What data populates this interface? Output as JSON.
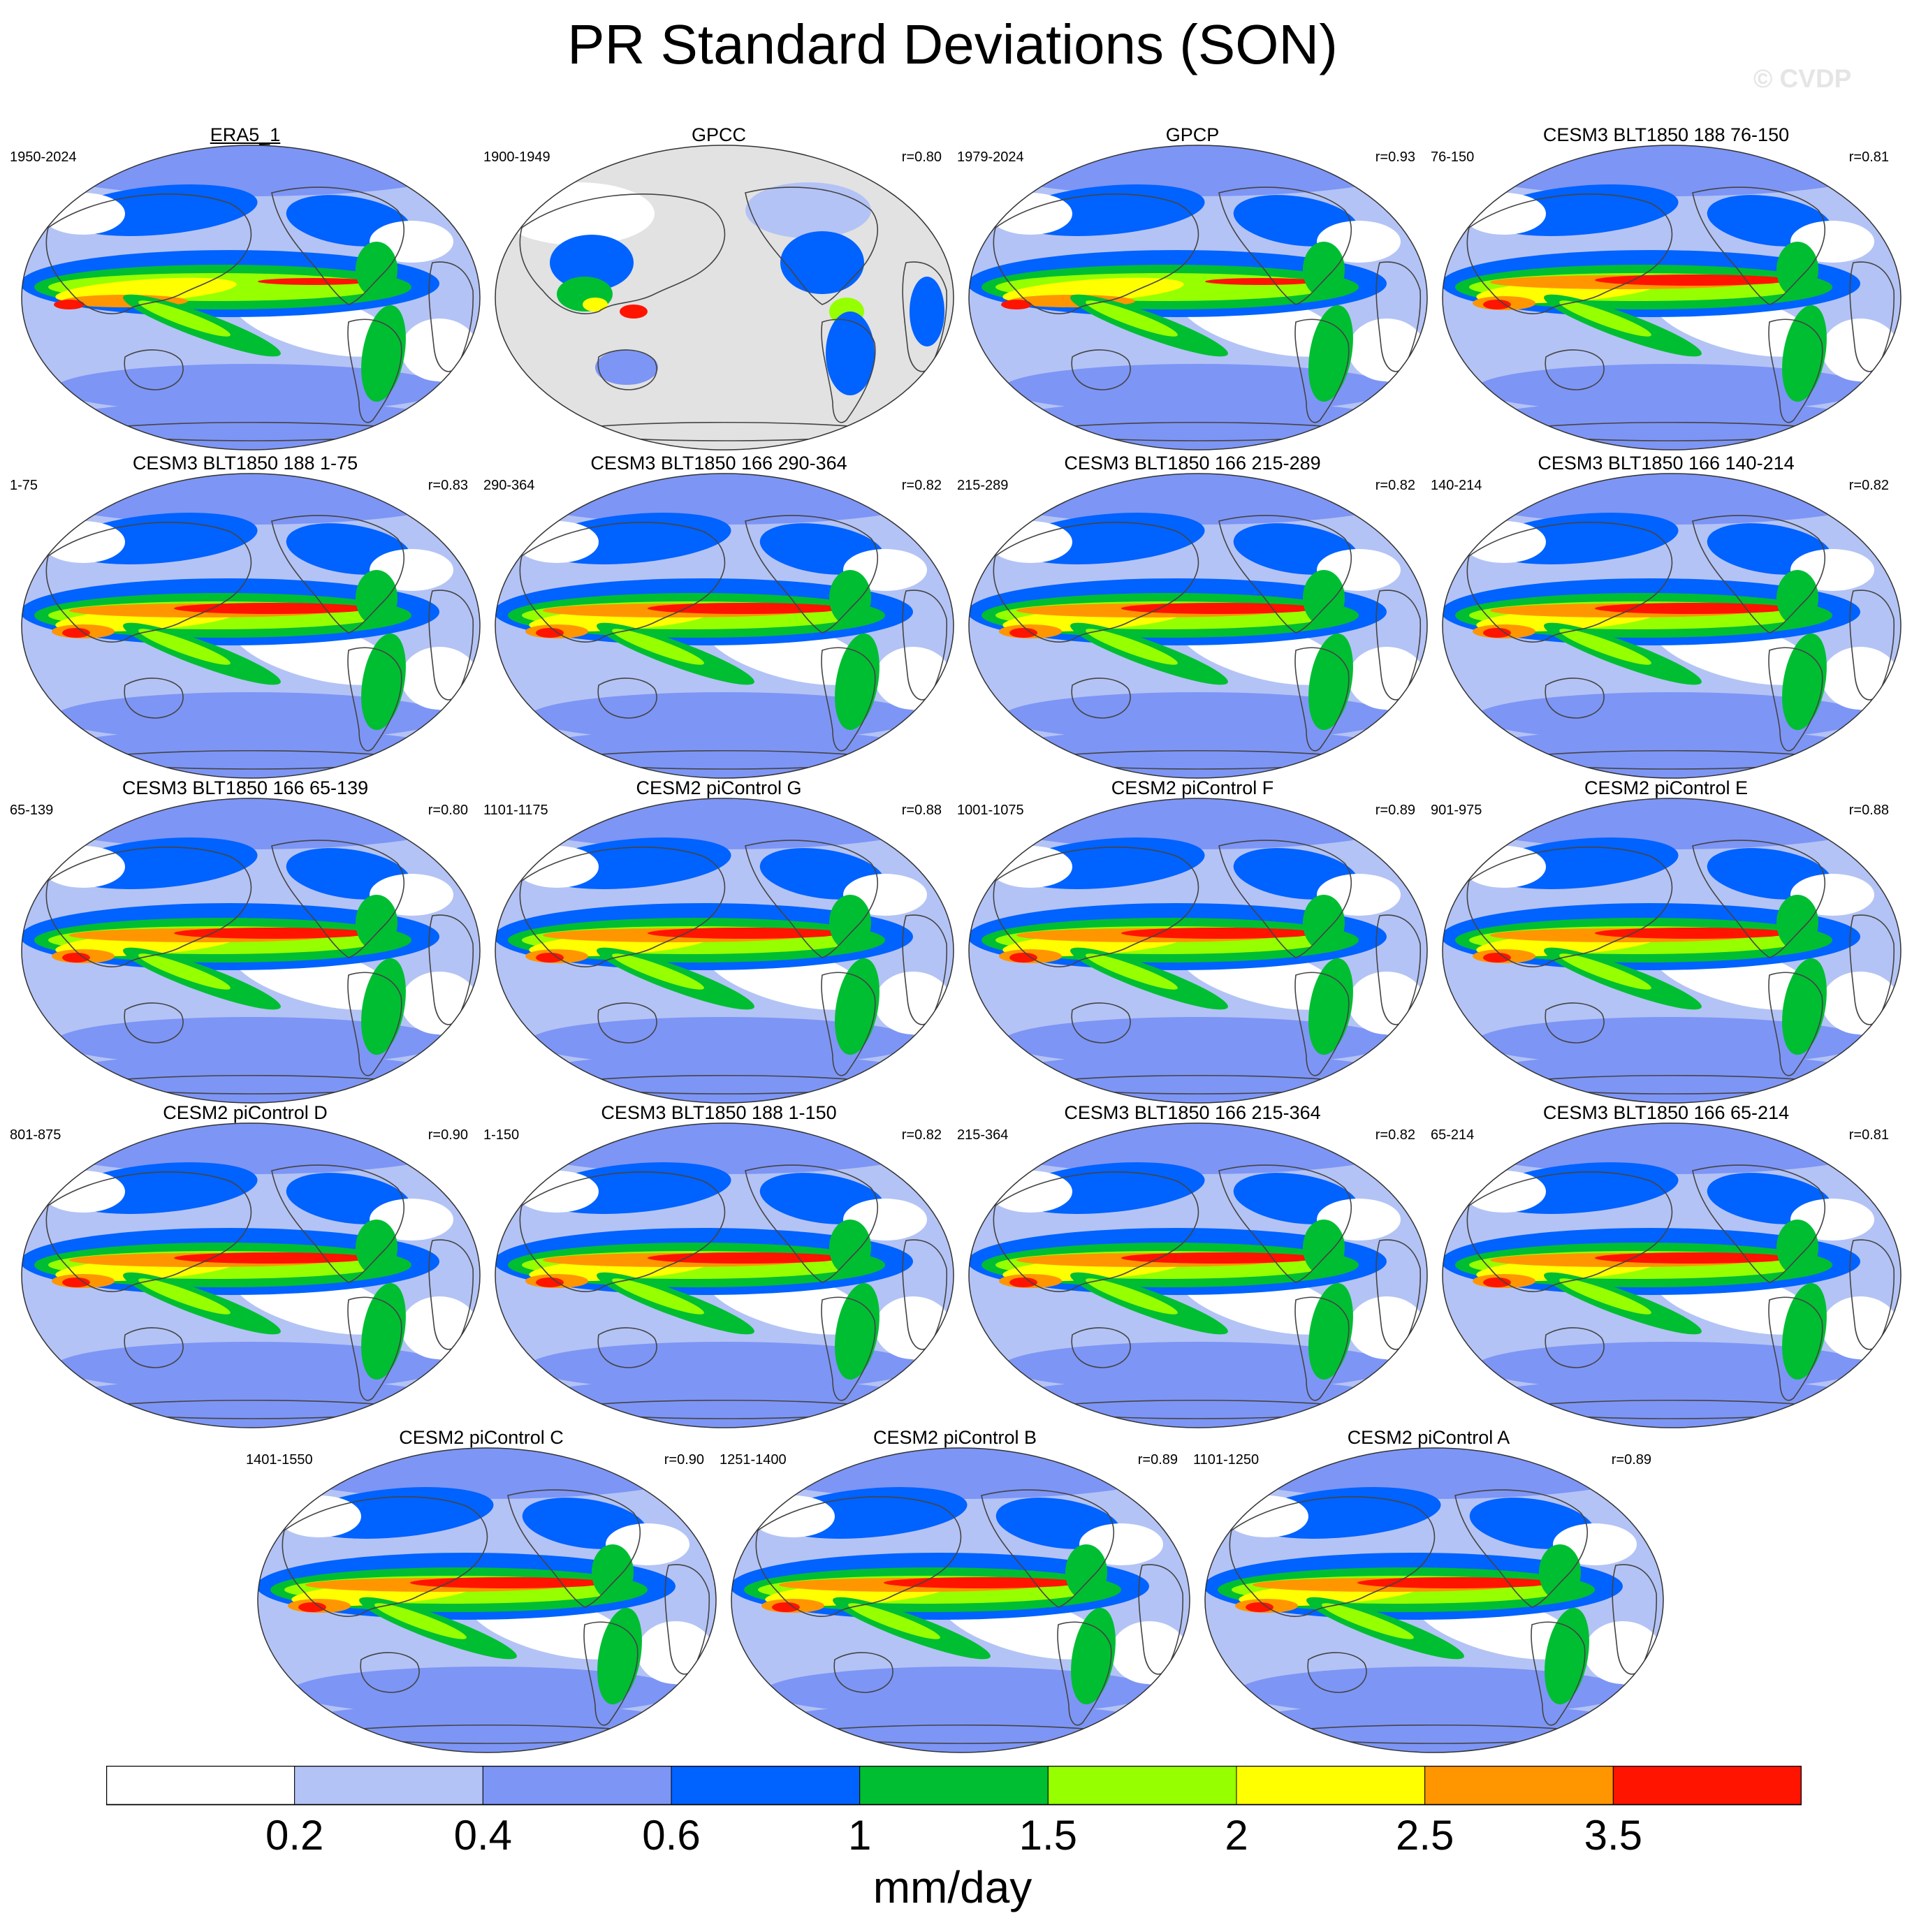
{
  "title": "PR Standard Deviations (SON)",
  "watermark": "© CVDP",
  "colorbar": {
    "units": "mm/day",
    "tick_labels": [
      "0.2",
      "0.4",
      "0.6",
      "1",
      "1.5",
      "2",
      "2.5",
      "3.5"
    ],
    "colors": [
      "#ffffff",
      "#b4c3f5",
      "#7d95f5",
      "#0062ff",
      "#00be32",
      "#96ff00",
      "#ffff00",
      "#ff9600",
      "#ff1400"
    ]
  },
  "panels": [
    {
      "title": "ERA5_1",
      "period": "1950-2024",
      "corr": "",
      "variant": "obs",
      "underline": true
    },
    {
      "title": "GPCC",
      "period": "1900-1949",
      "corr": "r=0.80",
      "variant": "land"
    },
    {
      "title": "GPCP",
      "period": "1979-2024",
      "corr": "r=0.93",
      "variant": "obs"
    },
    {
      "title": "CESM3 BLT1850 188 76-150",
      "period": "76-150",
      "corr": "r=0.81",
      "variant": "model"
    },
    {
      "title": "CESM3 BLT1850 188 1-75",
      "period": "1-75",
      "corr": "r=0.83",
      "variant": "model"
    },
    {
      "title": "CESM3 BLT1850 166 290-364",
      "period": "290-364",
      "corr": "r=0.82",
      "variant": "model"
    },
    {
      "title": "CESM3 BLT1850 166 215-289",
      "period": "215-289",
      "corr": "r=0.82",
      "variant": "model"
    },
    {
      "title": "CESM3 BLT1850 166 140-214",
      "period": "140-214",
      "corr": "r=0.82",
      "variant": "model"
    },
    {
      "title": "CESM3 BLT1850 166 65-139",
      "period": "65-139",
      "corr": "r=0.80",
      "variant": "model"
    },
    {
      "title": "CESM2 piControl G",
      "period": "1101-1175",
      "corr": "r=0.88",
      "variant": "model"
    },
    {
      "title": "CESM2 piControl F",
      "period": "1001-1075",
      "corr": "r=0.89",
      "variant": "model"
    },
    {
      "title": "CESM2 piControl E",
      "period": "901-975",
      "corr": "r=0.88",
      "variant": "model"
    },
    {
      "title": "CESM2 piControl D",
      "period": "801-875",
      "corr": "r=0.90",
      "variant": "model"
    },
    {
      "title": "CESM3 BLT1850 188 1-150",
      "period": "1-150",
      "corr": "r=0.82",
      "variant": "model"
    },
    {
      "title": "CESM3 BLT1850 166 215-364",
      "period": "215-364",
      "corr": "r=0.82",
      "variant": "model"
    },
    {
      "title": "CESM3 BLT1850 166 65-214",
      "period": "65-214",
      "corr": "r=0.81",
      "variant": "model"
    },
    {
      "title": "CESM2 piControl C",
      "period": "1401-1550",
      "corr": "r=0.90",
      "variant": "model"
    },
    {
      "title": "CESM2 piControl B",
      "period": "1251-1400",
      "corr": "r=0.89",
      "variant": "model"
    },
    {
      "title": "CESM2 piControl A",
      "period": "1101-1250",
      "corr": "r=0.89",
      "variant": "model"
    }
  ]
}
